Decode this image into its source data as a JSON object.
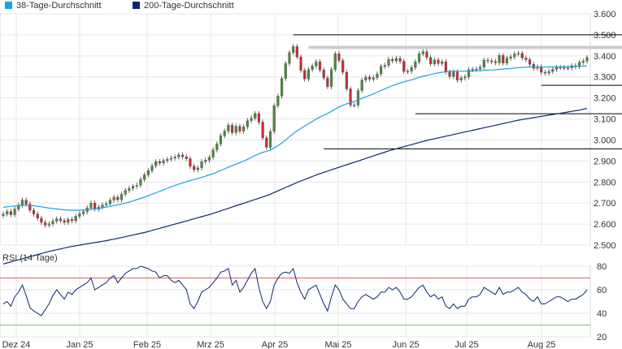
{
  "chart_data": [
    {
      "type": "candlestick",
      "legend": [
        {
          "label": "38-Tage-Durchschnitt",
          "color": "#1aa3e0"
        },
        {
          "label": "200-Tage-Durchschnitt",
          "color": "#0b2a6b"
        }
      ],
      "x_tick_labels": [
        "Dez 24",
        "Jan 25",
        "Feb 25",
        "Mrz 25",
        "Apr 25",
        "Mai 25",
        "Jun 25",
        "Jul 25",
        "Aug 25"
      ],
      "y_tick_labels": [
        "3.600",
        "3.500",
        "3.400",
        "3.300",
        "3.200",
        "3.100",
        "3.000",
        "2.900",
        "2.800",
        "2.700",
        "2.600",
        "2.500"
      ],
      "ylim": [
        2500,
        3600
      ],
      "grid": true,
      "colors": {
        "up": "#4c8a3c",
        "down": "#cc2a36",
        "wick": "#444444",
        "ma38": "#1aa3e0",
        "ma200": "#0b2a6b",
        "hline": "#000000",
        "resistance_zone": "#cccccc"
      },
      "horizontal_levels": [
        {
          "value": 3500,
          "from": 76,
          "to": 184
        },
        {
          "value": 3440,
          "from": 80,
          "to": 184,
          "style": "zone"
        },
        {
          "value": 3260,
          "from": 141,
          "to": 184
        },
        {
          "value": 3125,
          "from": 108,
          "to": 184
        },
        {
          "value": 2958,
          "from": 84,
          "to": 184
        }
      ],
      "closes": [
        2648,
        2660,
        2645,
        2671,
        2690,
        2714,
        2695,
        2666,
        2648,
        2628,
        2608,
        2595,
        2601,
        2614,
        2625,
        2617,
        2608,
        2622,
        2616,
        2637,
        2649,
        2659,
        2677,
        2700,
        2671,
        2681,
        2691,
        2696,
        2714,
        2728,
        2716,
        2742,
        2760,
        2770,
        2780,
        2785,
        2812,
        2834,
        2854,
        2877,
        2897,
        2890,
        2902,
        2908,
        2914,
        2919,
        2929,
        2920,
        2911,
        2875,
        2858,
        2867,
        2897,
        2904,
        2918,
        2953,
        2981,
        3020,
        3042,
        3070,
        3035,
        3065,
        3042,
        3063,
        3092,
        3104,
        3126,
        3085,
        3010,
        2965,
        3041,
        3163,
        3209,
        3292,
        3364,
        3416,
        3444,
        3395,
        3331,
        3290,
        3335,
        3352,
        3372,
        3333,
        3295,
        3254,
        3335,
        3410,
        3378,
        3322,
        3243,
        3166,
        3166,
        3235,
        3285,
        3299,
        3289,
        3296,
        3314,
        3350,
        3355,
        3383,
        3376,
        3388,
        3374,
        3326,
        3327,
        3345,
        3372,
        3410,
        3420,
        3392,
        3362,
        3381,
        3364,
        3372,
        3323,
        3302,
        3323,
        3285,
        3295,
        3300,
        3334,
        3336,
        3337,
        3346,
        3380,
        3376,
        3373,
        3367,
        3402,
        3366,
        3389,
        3395,
        3409,
        3412,
        3390,
        3382,
        3360,
        3341,
        3348,
        3322,
        3318,
        3326,
        3336,
        3345,
        3345,
        3342,
        3343,
        3353,
        3349,
        3369,
        3375,
        3392
      ],
      "ma38": [
        2680,
        2682,
        2684,
        2686,
        2688,
        2689,
        2690,
        2689,
        2687,
        2685,
        2682,
        2679,
        2676,
        2674,
        2672,
        2670,
        2668,
        2667,
        2666,
        2666,
        2666,
        2667,
        2669,
        2671,
        2673,
        2675,
        2678,
        2681,
        2684,
        2688,
        2692,
        2696,
        2700,
        2705,
        2710,
        2716,
        2722,
        2728,
        2735,
        2742,
        2749,
        2756,
        2763,
        2770,
        2777,
        2784,
        2790,
        2796,
        2802,
        2807,
        2812,
        2817,
        2822,
        2828,
        2834,
        2840,
        2847,
        2855,
        2863,
        2871,
        2878,
        2885,
        2892,
        2900,
        2908,
        2917,
        2926,
        2934,
        2941,
        2946,
        2952,
        2962,
        2973,
        2986,
        3000,
        3015,
        3030,
        3043,
        3055,
        3066,
        3077,
        3088,
        3099,
        3109,
        3118,
        3126,
        3136,
        3147,
        3157,
        3165,
        3172,
        3177,
        3183,
        3190,
        3198,
        3205,
        3212,
        3219,
        3227,
        3235,
        3243,
        3251,
        3258,
        3265,
        3271,
        3276,
        3281,
        3286,
        3292,
        3298,
        3303,
        3307,
        3311,
        3316,
        3319,
        3322,
        3324,
        3326,
        3327,
        3327,
        3327,
        3327,
        3328,
        3328,
        3329,
        3330,
        3331,
        3332,
        3333,
        3334,
        3336,
        3337,
        3339,
        3340,
        3342,
        3344,
        3345,
        3346,
        3347,
        3347,
        3347,
        3347,
        3347,
        3347,
        3347,
        3347,
        3348,
        3348,
        3348,
        3349,
        3349,
        3350,
        3351,
        3352
      ],
      "ma200": [
        2410,
        2415,
        2420,
        2425,
        2430,
        2435,
        2440,
        2445,
        2450,
        2455,
        2460,
        2465,
        2470,
        2474,
        2478,
        2482,
        2486,
        2490,
        2494,
        2497,
        2500,
        2503,
        2506,
        2509,
        2512,
        2515,
        2518,
        2521,
        2525,
        2528,
        2532,
        2536,
        2540,
        2544,
        2548,
        2552,
        2556,
        2560,
        2565,
        2570,
        2575,
        2580,
        2585,
        2590,
        2595,
        2600,
        2605,
        2610,
        2615,
        2620,
        2625,
        2630,
        2635,
        2640,
        2645,
        2651,
        2657,
        2663,
        2669,
        2675,
        2681,
        2687,
        2693,
        2699,
        2705,
        2711,
        2717,
        2723,
        2729,
        2735,
        2742,
        2750,
        2758,
        2766,
        2774,
        2782,
        2790,
        2798,
        2805,
        2812,
        2819,
        2826,
        2833,
        2840,
        2846,
        2852,
        2858,
        2864,
        2870,
        2876,
        2882,
        2888,
        2894,
        2900,
        2906,
        2912,
        2918,
        2924,
        2930,
        2936,
        2942,
        2948,
        2953,
        2958,
        2963,
        2968,
        2973,
        2978,
        2983,
        2988,
        2993,
        2998,
        3002,
        3006,
        3010,
        3014,
        3018,
        3022,
        3026,
        3030,
        3034,
        3038,
        3042,
        3046,
        3050,
        3054,
        3058,
        3062,
        3066,
        3070,
        3074,
        3078,
        3082,
        3086,
        3090,
        3094,
        3097,
        3100,
        3103,
        3106,
        3109,
        3112,
        3115,
        3118,
        3121,
        3124,
        3127,
        3130,
        3133,
        3136,
        3139,
        3142,
        3146,
        3150
      ]
    },
    {
      "type": "line",
      "title": "RSI (14 Tage)",
      "y_tick_labels": [
        "80",
        "60",
        "40",
        "20"
      ],
      "ylim": [
        20,
        80
      ],
      "grid": true,
      "colors": {
        "line": "#0b2a6b",
        "overbought": "#e06060",
        "oversold": "#7ac47a"
      },
      "reference_lines": [
        70,
        30
      ],
      "values": [
        48,
        50,
        46,
        54,
        58,
        64,
        55,
        45,
        42,
        40,
        38,
        43,
        48,
        55,
        60,
        56,
        52,
        58,
        56,
        60,
        62,
        64,
        66,
        70,
        60,
        62,
        64,
        66,
        70,
        72,
        66,
        70,
        74,
        76,
        78,
        78,
        80,
        79,
        78,
        76,
        75,
        70,
        72,
        72,
        68,
        66,
        68,
        64,
        60,
        48,
        44,
        50,
        58,
        60,
        62,
        66,
        70,
        75,
        76,
        78,
        64,
        68,
        58,
        62,
        68,
        74,
        78,
        62,
        50,
        44,
        50,
        64,
        70,
        74,
        75,
        74,
        78,
        66,
        58,
        52,
        60,
        62,
        64,
        56,
        48,
        42,
        54,
        64,
        60,
        52,
        48,
        44,
        44,
        50,
        54,
        56,
        54,
        52,
        54,
        58,
        58,
        62,
        60,
        62,
        58,
        52,
        52,
        54,
        58,
        62,
        64,
        58,
        54,
        56,
        52,
        54,
        46,
        44,
        48,
        44,
        46,
        46,
        52,
        54,
        54,
        56,
        62,
        60,
        58,
        56,
        62,
        56,
        58,
        58,
        60,
        62,
        58,
        56,
        52,
        50,
        54,
        48,
        48,
        50,
        52,
        54,
        54,
        52,
        50,
        52,
        52,
        54,
        56,
        60
      ]
    }
  ]
}
